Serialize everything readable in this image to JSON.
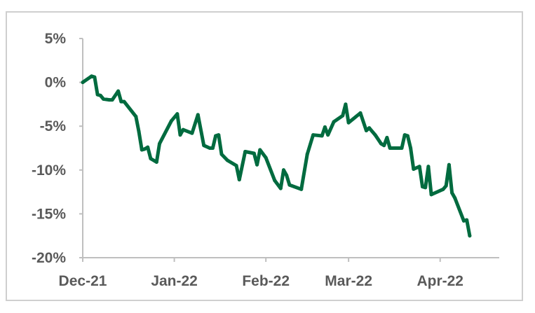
{
  "chart_data": {
    "type": "line",
    "title": "",
    "xlabel": "",
    "ylabel": "",
    "ylim": [
      -20,
      5
    ],
    "xlim": [
      "2021-12-01",
      "2022-04-21"
    ],
    "yticks": [
      5,
      0,
      -5,
      -10,
      -15,
      -20
    ],
    "ytick_labels": [
      "5%",
      "0%",
      "-5%",
      "-10%",
      "-15%",
      "-20%"
    ],
    "xticks": [
      "2021-12-01",
      "2022-01-01",
      "2022-02-01",
      "2022-03-01",
      "2022-04-01"
    ],
    "xtick_labels": [
      "Dec-21",
      "Jan-22",
      "Feb-22",
      "Mar-22",
      "Apr-22"
    ],
    "grid": false,
    "legend": "none",
    "series": [
      {
        "color": "#006b3f",
        "points": [
          [
            "2021-12-01",
            0.0
          ],
          [
            "2021-12-04",
            0.7
          ],
          [
            "2021-12-05",
            0.6
          ],
          [
            "2021-12-06",
            -1.4
          ],
          [
            "2021-12-07",
            -1.5
          ],
          [
            "2021-12-08",
            -1.9
          ],
          [
            "2021-12-10",
            -2.0
          ],
          [
            "2021-12-11",
            -2.0
          ],
          [
            "2021-12-13",
            -1.0
          ],
          [
            "2021-12-14",
            -2.2
          ],
          [
            "2021-12-15",
            -2.2
          ],
          [
            "2021-12-19",
            -3.9
          ],
          [
            "2021-12-20",
            -5.6
          ],
          [
            "2021-12-21",
            -7.7
          ],
          [
            "2021-12-22",
            -7.6
          ],
          [
            "2021-12-23",
            -7.4
          ],
          [
            "2021-12-24",
            -8.7
          ],
          [
            "2021-12-26",
            -9.1
          ],
          [
            "2021-12-27",
            -7.0
          ],
          [
            "2021-12-31",
            -4.4
          ],
          [
            "2022-01-02",
            -3.6
          ],
          [
            "2022-01-03",
            -6.0
          ],
          [
            "2022-01-04",
            -5.4
          ],
          [
            "2022-01-07",
            -5.8
          ],
          [
            "2022-01-09",
            -3.7
          ],
          [
            "2022-01-11",
            -7.2
          ],
          [
            "2022-01-13",
            -7.5
          ],
          [
            "2022-01-14",
            -7.5
          ],
          [
            "2022-01-15",
            -6.1
          ],
          [
            "2022-01-16",
            -6.0
          ],
          [
            "2022-01-17",
            -8.2
          ],
          [
            "2022-01-19",
            -8.9
          ],
          [
            "2022-01-22",
            -9.5
          ],
          [
            "2022-01-23",
            -11.1
          ],
          [
            "2022-01-25",
            -7.9
          ],
          [
            "2022-01-28",
            -8.1
          ],
          [
            "2022-01-29",
            -9.4
          ],
          [
            "2022-01-30",
            -7.7
          ],
          [
            "2022-02-01",
            -8.6
          ],
          [
            "2022-02-04",
            -11.2
          ],
          [
            "2022-02-06",
            -12.1
          ],
          [
            "2022-02-07",
            -10.0
          ],
          [
            "2022-02-08",
            -10.6
          ],
          [
            "2022-02-09",
            -11.7
          ],
          [
            "2022-02-13",
            -12.2
          ],
          [
            "2022-02-15",
            -8.2
          ],
          [
            "2022-02-17",
            -6.0
          ],
          [
            "2022-02-20",
            -6.1
          ],
          [
            "2022-02-21",
            -5.1
          ],
          [
            "2022-02-22",
            -6.0
          ],
          [
            "2022-02-24",
            -4.5
          ],
          [
            "2022-02-27",
            -3.8
          ],
          [
            "2022-02-28",
            -2.5
          ],
          [
            "2022-03-01",
            -4.6
          ],
          [
            "2022-03-05",
            -3.5
          ],
          [
            "2022-03-07",
            -5.5
          ],
          [
            "2022-03-08",
            -5.2
          ],
          [
            "2022-03-10",
            -6.0
          ],
          [
            "2022-03-12",
            -7.0
          ],
          [
            "2022-03-13",
            -7.2
          ],
          [
            "2022-03-14",
            -6.3
          ],
          [
            "2022-03-15",
            -7.5
          ],
          [
            "2022-03-19",
            -7.5
          ],
          [
            "2022-03-20",
            -6.0
          ],
          [
            "2022-03-21",
            -6.1
          ],
          [
            "2022-03-22",
            -7.5
          ],
          [
            "2022-03-23",
            -9.9
          ],
          [
            "2022-03-25",
            -9.6
          ],
          [
            "2022-03-26",
            -11.9
          ],
          [
            "2022-03-27",
            -12.0
          ],
          [
            "2022-03-28",
            -9.6
          ],
          [
            "2022-03-29",
            -12.8
          ],
          [
            "2022-04-02",
            -12.2
          ],
          [
            "2022-04-03",
            -11.8
          ],
          [
            "2022-04-04",
            -9.4
          ],
          [
            "2022-04-05",
            -12.6
          ],
          [
            "2022-04-06",
            -13.2
          ],
          [
            "2022-04-09",
            -15.8
          ],
          [
            "2022-04-10",
            -15.7
          ],
          [
            "2022-04-11",
            -17.5
          ]
        ]
      }
    ]
  }
}
